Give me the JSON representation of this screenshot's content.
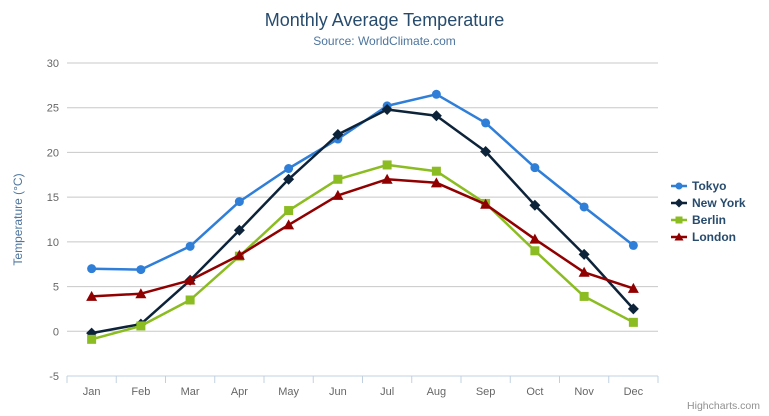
{
  "chart": {
    "title": "Monthly Average Temperature",
    "subtitle": "Source: WorldClimate.com"
  },
  "credit": {
    "label": "Highcharts.com"
  },
  "icons": {
    "export_menu": "hamburger-icon"
  },
  "colors": {
    "title": "#274b6d",
    "subtitle": "#4d759e",
    "axis_labels": "#666666",
    "axis_title": "#4d759e",
    "gridline": "#c8c8c8",
    "axis_line": "#c0d0e0",
    "legend_text": "#274b6d",
    "credit_text": "#909090"
  },
  "chart_data": {
    "type": "line",
    "title": "Monthly Average Temperature",
    "subtitle": "Source: WorldClimate.com",
    "xlabel": "",
    "ylabel": "Temperature (°C)",
    "categories": [
      "Jan",
      "Feb",
      "Mar",
      "Apr",
      "May",
      "Jun",
      "Jul",
      "Aug",
      "Sep",
      "Oct",
      "Nov",
      "Dec"
    ],
    "ylim": [
      -5,
      30
    ],
    "yticks": [
      -5,
      0,
      5,
      10,
      15,
      20,
      25,
      30
    ],
    "grid": "horizontal",
    "legend_position": "right",
    "series": [
      {
        "name": "Tokyo",
        "color": "#2f7ed8",
        "marker": "circle",
        "values": [
          7.0,
          6.9,
          9.5,
          14.5,
          18.2,
          21.5,
          25.2,
          26.5,
          23.3,
          18.3,
          13.9,
          9.6
        ]
      },
      {
        "name": "New York",
        "color": "#0d233a",
        "marker": "diamond",
        "values": [
          -0.2,
          0.8,
          5.7,
          11.3,
          17.0,
          22.0,
          24.8,
          24.1,
          20.1,
          14.1,
          8.6,
          2.5
        ]
      },
      {
        "name": "Berlin",
        "color": "#8bbc21",
        "marker": "square",
        "values": [
          -0.9,
          0.6,
          3.5,
          8.4,
          13.5,
          17.0,
          18.6,
          17.9,
          14.3,
          9.0,
          3.9,
          1.0
        ]
      },
      {
        "name": "London",
        "color": "#910000",
        "marker": "triangle",
        "values": [
          3.9,
          4.2,
          5.7,
          8.5,
          11.9,
          15.2,
          17.0,
          16.6,
          14.2,
          10.3,
          6.6,
          4.8
        ]
      }
    ]
  }
}
